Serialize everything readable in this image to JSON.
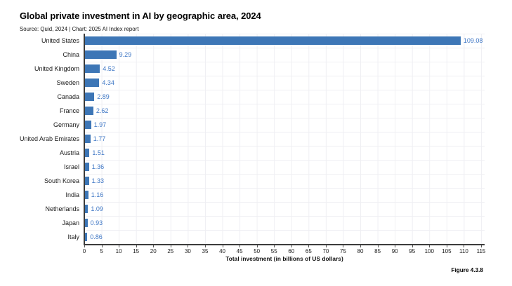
{
  "chart_data": {
    "type": "bar",
    "orientation": "horizontal",
    "title": "Global private investment in AI by geographic area, 2024",
    "subtitle": "Source: Quid, 2024 | Chart: 2025 AI Index report",
    "categories": [
      "United States",
      "China",
      "United Kingdom",
      "Sweden",
      "Canada",
      "France",
      "Germany",
      "United Arab Emirates",
      "Austria",
      "Israel",
      "South Korea",
      "India",
      "Netherlands",
      "Japan",
      "Italy"
    ],
    "values": [
      109.08,
      9.29,
      4.52,
      4.34,
      2.89,
      2.62,
      1.97,
      1.77,
      1.51,
      1.36,
      1.33,
      1.16,
      1.09,
      0.93,
      0.86
    ],
    "value_labels": [
      "109.08",
      "9.29",
      "4.52",
      "4.34",
      "2.89",
      "2.62",
      "1.97",
      "1.77",
      "1.51",
      "1.36",
      "1.33",
      "1.16",
      "1.09",
      "0.93",
      "0.86"
    ],
    "xlabel": "Total investment (in billions of US dollars)",
    "xlim": [
      0,
      115
    ],
    "xticks": [
      0,
      5,
      10,
      15,
      20,
      25,
      30,
      35,
      40,
      45,
      50,
      55,
      60,
      65,
      70,
      75,
      80,
      85,
      90,
      95,
      100,
      105,
      110,
      115
    ],
    "grid": true,
    "legend": "none",
    "colors": {
      "bar": "#3d76b6",
      "value_label": "#3f77c5",
      "axis_line": "#3b3b3b",
      "grid_line": "#efeff3"
    }
  },
  "footer": {
    "figure_label": "Figure 4.3.8"
  }
}
